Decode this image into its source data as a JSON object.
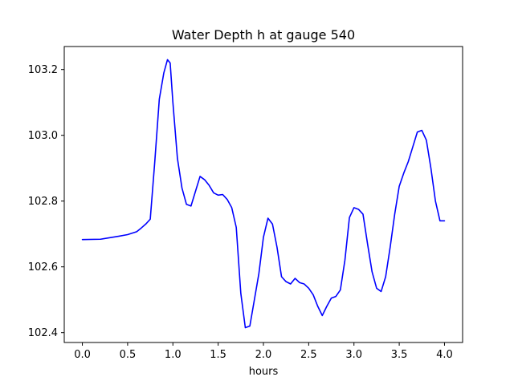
{
  "chart_data": {
    "type": "line",
    "title": "Water Depth h at gauge 540",
    "xlabel": "hours",
    "ylabel": "",
    "xlim": [
      -0.2,
      4.2
    ],
    "ylim": [
      102.37,
      103.27
    ],
    "xticks": [
      0.0,
      0.5,
      1.0,
      1.5,
      2.0,
      2.5,
      3.0,
      3.5,
      4.0
    ],
    "xtick_labels": [
      "0.0",
      "0.5",
      "1.0",
      "1.5",
      "2.0",
      "2.5",
      "3.0",
      "3.5",
      "4.0"
    ],
    "yticks": [
      102.4,
      102.6,
      102.8,
      103.0,
      103.2
    ],
    "ytick_labels": [
      "102.4",
      "102.6",
      "102.8",
      "103.0",
      "103.2"
    ],
    "grid": false,
    "series": [
      {
        "color": "#0000ff",
        "x": [
          0.0,
          0.2,
          0.4,
          0.5,
          0.6,
          0.65,
          0.7,
          0.75,
          0.8,
          0.85,
          0.9,
          0.94,
          0.97,
          1.0,
          1.05,
          1.1,
          1.15,
          1.2,
          1.25,
          1.3,
          1.35,
          1.4,
          1.45,
          1.5,
          1.55,
          1.6,
          1.65,
          1.7,
          1.75,
          1.8,
          1.85,
          1.9,
          1.95,
          2.0,
          2.05,
          2.1,
          2.15,
          2.2,
          2.25,
          2.3,
          2.35,
          2.4,
          2.45,
          2.5,
          2.55,
          2.6,
          2.65,
          2.7,
          2.75,
          2.8,
          2.85,
          2.9,
          2.95,
          3.0,
          3.05,
          3.1,
          3.15,
          3.2,
          3.25,
          3.3,
          3.35,
          3.4,
          3.45,
          3.5,
          3.55,
          3.6,
          3.65,
          3.7,
          3.75,
          3.8,
          3.85,
          3.9,
          3.95,
          4.0
        ],
        "y": [
          102.683,
          102.684,
          102.693,
          102.698,
          102.707,
          102.718,
          102.73,
          102.745,
          102.92,
          103.11,
          103.19,
          103.23,
          103.22,
          103.1,
          102.93,
          102.84,
          102.79,
          102.785,
          102.83,
          102.875,
          102.865,
          102.848,
          102.825,
          102.818,
          102.82,
          102.805,
          102.78,
          102.72,
          102.52,
          102.415,
          102.42,
          102.5,
          102.58,
          102.69,
          102.748,
          102.73,
          102.66,
          102.57,
          102.555,
          102.548,
          102.565,
          102.552,
          102.548,
          102.535,
          102.515,
          102.48,
          102.452,
          102.48,
          102.505,
          102.51,
          102.53,
          102.62,
          102.75,
          102.78,
          102.775,
          102.76,
          102.67,
          102.585,
          102.535,
          102.525,
          102.57,
          102.66,
          102.76,
          102.845,
          102.885,
          102.92,
          102.965,
          103.01,
          103.015,
          102.985,
          102.9,
          102.8,
          102.74,
          102.74
        ]
      }
    ]
  }
}
